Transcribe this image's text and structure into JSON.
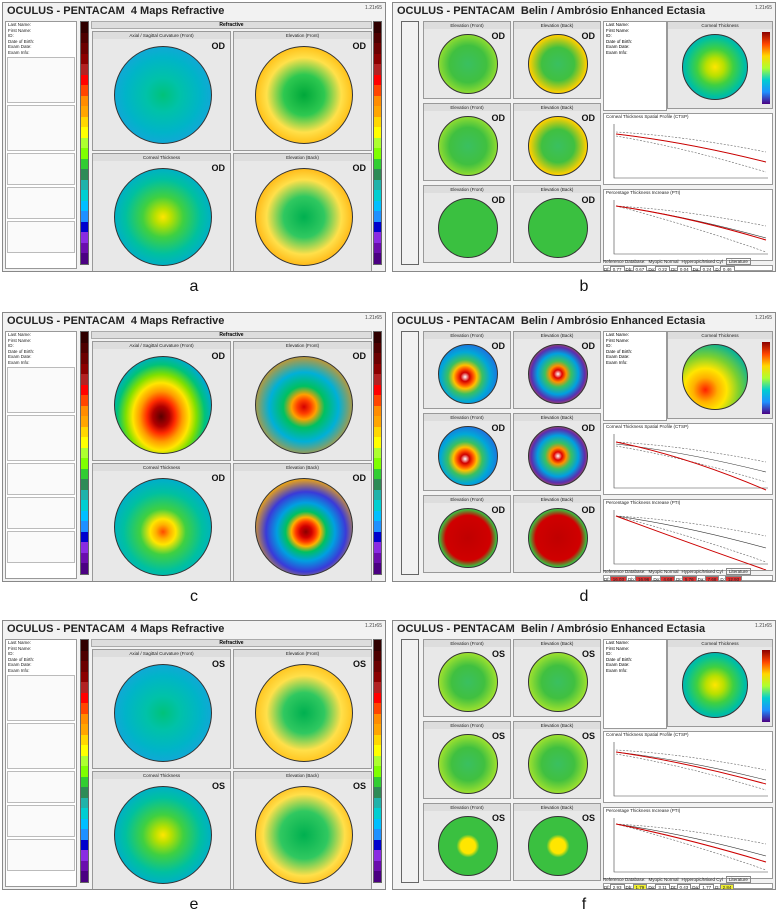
{
  "panels": [
    {
      "id": "a",
      "kind": "4maps",
      "brand": "OCULUS",
      "product": "PENTACAM",
      "title": "4 Maps Refractive",
      "version": "1.21r65",
      "section": "Refractive",
      "eye": "OD",
      "letter": "a",
      "maps": [
        {
          "title": "Axial / Sagittal Curvature (Front)",
          "style": "teal"
        },
        {
          "title": "Elevation (Front)",
          "style": "elev-flat"
        },
        {
          "title": "Corneal Thickness",
          "style": "thick"
        },
        {
          "title": "Elevation (Back)",
          "style": "elev-flat2"
        }
      ],
      "fields": [
        "Last Name:",
        "First Name:",
        "ID:",
        "Date of Birth:",
        "Exam Date:",
        "Exam Info:"
      ]
    },
    {
      "id": "b",
      "kind": "belin",
      "brand": "OCULUS",
      "product": "PENTACAM",
      "title": "Belin / Ambrósio Enhanced Ectasia",
      "version": "1.21r65",
      "eye": "OD",
      "letter": "b",
      "dvalue": "0.46",
      "map_titles": [
        "Elevation (Front)",
        "Elevation (Back)"
      ],
      "graph_titles": [
        "Corneal Thickness Spatial Profile (CTSP)",
        "Percentage Thickness Increase (PTI)"
      ],
      "ref_db": "Reference Database:",
      "ref_opts": [
        "Myopic Normal",
        "Hyperopic/Mixed Cyl"
      ],
      "literature": "Literature",
      "d_labels": [
        "Df:",
        "Db:",
        "Dp:",
        "Dt:",
        "Da:",
        "D:"
      ],
      "d_values": [
        "0.77",
        "0.67",
        "0.22",
        "0.04",
        "0.24",
        "0.46"
      ],
      "d_colors": [
        "#fff",
        "#fff",
        "#fff",
        "#fff",
        "#fff",
        "#fff"
      ],
      "style": "normal",
      "thick_title": "Corneal Thickness",
      "fields": [
        "Last Name:",
        "First Name:",
        "ID:",
        "Date of Birth:",
        "Exam Date:",
        "Exam Info:"
      ]
    },
    {
      "id": "c",
      "kind": "4maps",
      "brand": "OCULUS",
      "product": "PENTACAM",
      "title": "4 Maps Refractive",
      "version": "1.21r65",
      "section": "Refractive",
      "eye": "OD",
      "letter": "c",
      "maps": [
        {
          "title": "Axial / Sagittal Curvature (Front)",
          "style": "kc"
        },
        {
          "title": "Elevation (Front)",
          "style": "elev-kc"
        },
        {
          "title": "Corneal Thickness",
          "style": "thick-kc"
        },
        {
          "title": "Elevation (Back)",
          "style": "elev-kc2"
        }
      ],
      "fields": [
        "Last Name:",
        "First Name:",
        "ID:",
        "Date of Birth:",
        "Exam Date:",
        "Exam Info:"
      ]
    },
    {
      "id": "d",
      "kind": "belin",
      "brand": "OCULUS",
      "product": "PENTACAM",
      "title": "Belin / Ambrósio Enhanced Ectasia",
      "version": "1.21r65",
      "eye": "OD",
      "letter": "d",
      "dvalue": "12.93",
      "map_titles": [
        "Elevation (Front)",
        "Elevation (Back)"
      ],
      "graph_titles": [
        "Corneal Thickness Spatial Profile (CTSP)",
        "Percentage Thickness Increase (PTI)"
      ],
      "ref_db": "Reference Database:",
      "ref_opts": [
        "Myopic Normal",
        "Hyperopic/Mixed Cyl"
      ],
      "literature": "Literature",
      "d_labels": [
        "Df:",
        "Db:",
        "Dp:",
        "Dt:",
        "Da:",
        "D:"
      ],
      "d_values": [
        "16.03",
        "16.96",
        "4.68",
        "5.76",
        "7.68",
        "12.93"
      ],
      "d_colors": [
        "#d33",
        "#d33",
        "#d33",
        "#d33",
        "#d33",
        "#d33"
      ],
      "style": "kc",
      "thick_title": "Corneal Thickness",
      "fields": [
        "Last Name:",
        "First Name:",
        "ID:",
        "Date of Birth:",
        "Exam Date:",
        "Exam Info:"
      ]
    },
    {
      "id": "e",
      "kind": "4maps",
      "brand": "OCULUS",
      "product": "PENTACAM",
      "title": "4 Maps Refractive",
      "version": "1.21r65",
      "section": "Refractive",
      "eye": "OS",
      "letter": "e",
      "maps": [
        {
          "title": "Axial / Sagittal Curvature (Front)",
          "style": "teal"
        },
        {
          "title": "Elevation (Front)",
          "style": "elev-flat3"
        },
        {
          "title": "Corneal Thickness",
          "style": "thick"
        },
        {
          "title": "Elevation (Back)",
          "style": "elev-flat4"
        }
      ],
      "fields": [
        "Last Name:",
        "First Name:",
        "ID:",
        "Date of Birth:",
        "Exam Date:",
        "Exam Info:"
      ]
    },
    {
      "id": "f",
      "kind": "belin",
      "brand": "OCULUS",
      "product": "PENTACAM",
      "title": "Belin / Ambrósio Enhanced Ectasia",
      "version": "1.21r65",
      "eye": "OS",
      "letter": "f",
      "dvalue": "2.84",
      "map_titles": [
        "Elevation (Front)",
        "Elevation (Back)"
      ],
      "graph_titles": [
        "Corneal Thickness Spatial Profile (CTSP)",
        "Percentage Thickness Increase (PTI)"
      ],
      "ref_db": "Reference Database:",
      "ref_opts": [
        "Myopic Normal",
        "Hyperopic/Mixed Cyl"
      ],
      "literature": "Literature",
      "d_labels": [
        "Df:",
        "Db:",
        "Dp:",
        "Dt:",
        "Da:",
        "D:"
      ],
      "d_values": [
        "2.93",
        "1.79",
        "3.11",
        "0.43",
        "1.77",
        "2.84"
      ],
      "d_colors": [
        "#fff",
        "#ee3",
        "#fff",
        "#fff",
        "#fff",
        "#ee3"
      ],
      "style": "mild",
      "thick_title": "Corneal Thickness",
      "fields": [
        "Last Name:",
        "First Name:",
        "ID:",
        "Date of Birth:",
        "Exam Date:",
        "Exam Info:"
      ]
    }
  ],
  "colors": {
    "scale": [
      "#4b0082",
      "#6a0dad",
      "#8a2be2",
      "#0000cd",
      "#1e90ff",
      "#00bfff",
      "#00ced1",
      "#20b2aa",
      "#2e8b57",
      "#32cd32",
      "#7fff00",
      "#adff2f",
      "#ffff00",
      "#ffd700",
      "#ffa500",
      "#ff8c00",
      "#ff4500",
      "#ff0000",
      "#b22222",
      "#8b0000",
      "#6b0000",
      "#4d0000",
      "#300000"
    ]
  }
}
